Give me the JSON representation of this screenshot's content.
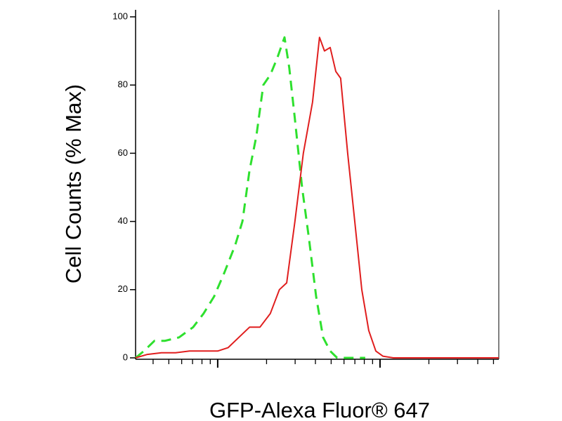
{
  "chart_data": {
    "type": "line",
    "x_label": "GFP-Alexa Fluor® 647",
    "y_label": "Cell Counts (% Max)",
    "xscale": "log",
    "xlim": [
      31.2,
      5390
    ],
    "xticks": [
      40,
      50,
      60,
      70,
      80,
      90,
      100,
      200,
      300,
      400,
      500,
      600,
      700,
      800,
      900,
      1000,
      2000,
      3000,
      4000,
      5000
    ],
    "ylim": [
      0,
      100
    ],
    "yticks": [
      0,
      20,
      40,
      60,
      80,
      100
    ],
    "series": [
      {
        "color": "#2ee02e",
        "dashed": true,
        "x": [
          31.2,
          35.1,
          40.8,
          47.4,
          57.8,
          70.6,
          81.9,
          95.1,
          110,
          128,
          142,
          157,
          173,
          191,
          211,
          233,
          258,
          276,
          299,
          331,
          365,
          404,
          446,
          493,
          544,
          811
        ],
        "values": [
          0,
          2,
          5,
          5,
          6,
          9,
          13,
          18,
          25,
          33,
          40,
          55,
          65,
          80,
          83,
          88,
          94,
          85,
          70,
          50,
          35,
          18,
          6,
          2,
          0,
          0
        ]
      },
      {
        "color": "#e01e1e",
        "dashed": false,
        "x": [
          31.2,
          36.9,
          45.0,
          55.0,
          67.1,
          81.9,
          100,
          116,
          135,
          157,
          182,
          211,
          240,
          266,
          299,
          337,
          384,
          424,
          455,
          493,
          534,
          572,
          632,
          699,
          772,
          852,
          942,
          1041,
          1209,
          5390
        ],
        "values": [
          0,
          1,
          1.5,
          1.5,
          2,
          2,
          2,
          3,
          6,
          9,
          9,
          13,
          20,
          22,
          40,
          60,
          75,
          94,
          90,
          91,
          84,
          82,
          60,
          40,
          20,
          8,
          2,
          0.5,
          0,
          0
        ]
      }
    ]
  }
}
